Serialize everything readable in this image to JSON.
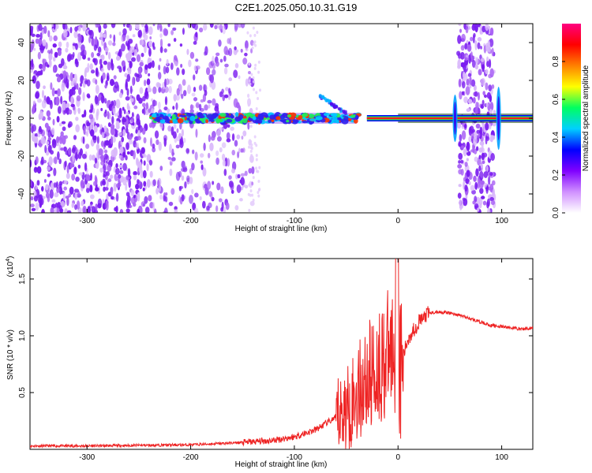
{
  "title": "C2E1.2025.050.10.31.G19",
  "chart_data": [
    {
      "type": "heatmap",
      "xlabel": "Height of straight line (km)",
      "ylabel": "Frequency (Hz)",
      "xlim": [
        -355,
        130
      ],
      "ylim": [
        -50,
        50
      ],
      "x_ticks": [
        "-300",
        "-200",
        "-100",
        "0",
        "100"
      ],
      "x_tick_values": [
        -300,
        -200,
        -100,
        0,
        100
      ],
      "y_ticks": [
        "-40",
        "-20",
        "0",
        "20",
        "40"
      ],
      "y_tick_values": [
        -40,
        -20,
        0,
        20,
        40
      ],
      "colorbar": {
        "label": "Normalized spectral amplitude",
        "range": [
          0,
          1
        ],
        "ticks": [
          "0.0",
          "0.2",
          "0.4",
          "0.6",
          "0.8"
        ],
        "tick_values": [
          0.0,
          0.2,
          0.4,
          0.6,
          0.8
        ],
        "colors": [
          "#ffffff",
          "#d090ff",
          "#8000ff",
          "#0000ff",
          "#00d0ff",
          "#00ff60",
          "#ffff00",
          "#ff8000",
          "#ff0000",
          "#ff0080"
        ]
      },
      "signal_band": {
        "x_range": [
          -238,
          130
        ],
        "frequency_center": 0,
        "noise_regions": [
          [
            -355,
            -238
          ],
          [
            -238,
            -140
          ],
          [
            58,
            93
          ]
        ]
      }
    },
    {
      "type": "line",
      "xlabel": "Height of straight line (km)",
      "ylabel": "SNR (10 * v/v)",
      "scale_label": "(x10",
      "scale_exponent": "4",
      "xlim": [
        -355,
        130
      ],
      "ylim": [
        0,
        1.68
      ],
      "x_ticks": [
        "-300",
        "-200",
        "-100",
        "0",
        "100"
      ],
      "x_tick_values": [
        -300,
        -200,
        -100,
        0,
        100
      ],
      "y_ticks": [
        "0.5",
        "1.0",
        "1.5"
      ],
      "y_tick_values": [
        0.5,
        1.0,
        1.5
      ],
      "color": "#ee2222",
      "x": [
        -355,
        -300,
        -250,
        -200,
        -150,
        -120,
        -100,
        -80,
        -60,
        -50,
        -40,
        -30,
        -20,
        -10,
        -2,
        0,
        5,
        10,
        20,
        30,
        40,
        50,
        60,
        70,
        80,
        90,
        100,
        110,
        120,
        130
      ],
      "y": [
        0.03,
        0.03,
        0.035,
        0.04,
        0.06,
        0.08,
        0.11,
        0.17,
        0.28,
        0.35,
        0.48,
        0.62,
        0.72,
        0.82,
        0.95,
        0.62,
        0.82,
        0.98,
        1.12,
        1.2,
        1.21,
        1.2,
        1.18,
        1.15,
        1.12,
        1.09,
        1.08,
        1.07,
        1.06,
        1.07
      ]
    }
  ]
}
